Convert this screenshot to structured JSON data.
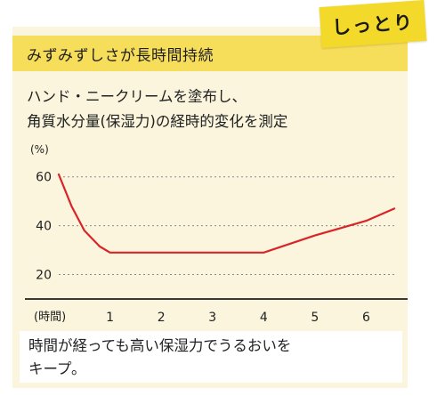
{
  "tag_label": "しっとり",
  "header_title": "みずみずしさが長時間持続",
  "description": [
    "ハンド・ニークリームを塗布し、",
    "角質水分量(保湿力)の経時的変化を測定"
  ],
  "footer_text": [
    "時間が経っても高い保湿力でうるおいを",
    "キープ。"
  ],
  "colors": {
    "accent_yellow": "#f3d92a",
    "header_yellow": "#f7de5a",
    "card_background": "#faf5dc",
    "line_red": "#d9242a"
  },
  "chart_data": {
    "type": "line",
    "ylabel": "(%)",
    "xlabel": "(時間)",
    "ylim": [
      10,
      65
    ],
    "xlim": [
      0,
      6.6
    ],
    "yticks": [
      20,
      40,
      60
    ],
    "ytick_labels": [
      "20",
      "40",
      "60"
    ],
    "xticks": [
      1,
      2,
      3,
      4,
      5,
      6
    ],
    "xtick_labels": [
      "1",
      "2",
      "3",
      "4",
      "5",
      "6"
    ],
    "grid": "dashed horizontal",
    "series": [
      {
        "x": [
          0,
          0.25,
          0.5,
          0.8,
          1,
          2,
          3,
          4,
          5,
          6,
          6.55
        ],
        "y": [
          61,
          48,
          38,
          31.5,
          29,
          29,
          29,
          29,
          36,
          42,
          47
        ],
        "color": "#d9242a"
      }
    ]
  }
}
